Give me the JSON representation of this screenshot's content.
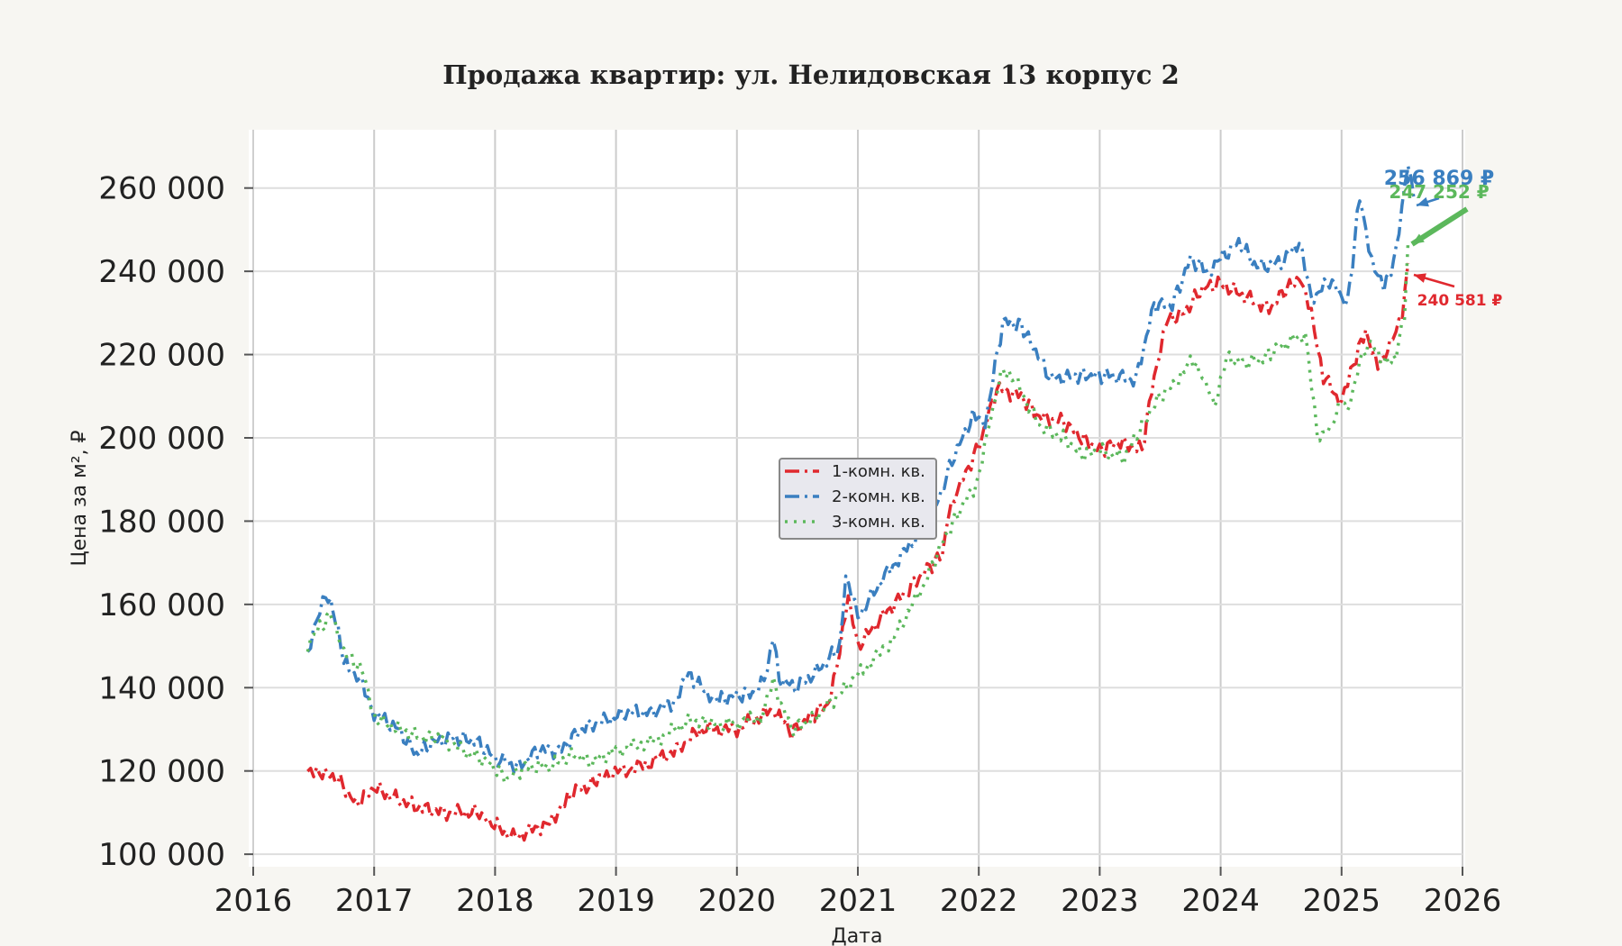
{
  "chart_data": {
    "type": "line",
    "title": "Продажа квартир: ул. Нелидовская 13 корпус 2",
    "xlabel": "Дата",
    "ylabel": "Цена за м², ₽",
    "x_ticks": [
      "2016",
      "2017",
      "2018",
      "2019",
      "2020",
      "2021",
      "2022",
      "2023",
      "2024",
      "2025",
      "2026"
    ],
    "y_ticks": [
      "100 000",
      "120 000",
      "140 000",
      "160 000",
      "180 000",
      "200 000",
      "220 000",
      "240 000",
      "260 000"
    ],
    "xlim": [
      2016.0,
      2026.0
    ],
    "ylim": [
      97000,
      274000
    ],
    "grid": true,
    "legend_position": "center",
    "series": [
      {
        "name": "1-комн. кв.",
        "color": "#e0282e",
        "dash": "dashdot",
        "points": [
          [
            2016.45,
            119000
          ],
          [
            2016.55,
            120000
          ],
          [
            2016.7,
            118000
          ],
          [
            2016.85,
            112000
          ],
          [
            2017.0,
            116000
          ],
          [
            2017.2,
            113000
          ],
          [
            2017.4,
            111000
          ],
          [
            2017.6,
            110000
          ],
          [
            2017.85,
            110000
          ],
          [
            2017.95,
            108000
          ],
          [
            2018.15,
            104000
          ],
          [
            2018.4,
            107000
          ],
          [
            2018.5,
            108000
          ],
          [
            2018.6,
            114000
          ],
          [
            2018.8,
            117000
          ],
          [
            2018.9,
            119000
          ],
          [
            2019.2,
            121000
          ],
          [
            2019.5,
            125000
          ],
          [
            2019.7,
            130000
          ],
          [
            2020.0,
            130000
          ],
          [
            2020.25,
            134000
          ],
          [
            2020.35,
            134000
          ],
          [
            2020.45,
            129000
          ],
          [
            2020.6,
            133000
          ],
          [
            2020.75,
            136000
          ],
          [
            2020.85,
            148000
          ],
          [
            2020.92,
            162000
          ],
          [
            2021.0,
            150000
          ],
          [
            2021.2,
            157000
          ],
          [
            2021.4,
            163000
          ],
          [
            2021.55,
            168000
          ],
          [
            2021.7,
            172000
          ],
          [
            2021.75,
            183000
          ],
          [
            2021.85,
            189000
          ],
          [
            2022.0,
            198000
          ],
          [
            2022.15,
            212000
          ],
          [
            2022.35,
            210000
          ],
          [
            2022.5,
            205000
          ],
          [
            2022.7,
            204000
          ],
          [
            2022.85,
            200000
          ],
          [
            2023.0,
            197000
          ],
          [
            2023.15,
            199000
          ],
          [
            2023.35,
            197000
          ],
          [
            2023.45,
            215000
          ],
          [
            2023.55,
            228000
          ],
          [
            2023.7,
            230000
          ],
          [
            2023.85,
            236000
          ],
          [
            2024.0,
            237000
          ],
          [
            2024.2,
            234000
          ],
          [
            2024.4,
            231000
          ],
          [
            2024.55,
            236000
          ],
          [
            2024.65,
            238000
          ],
          [
            2024.75,
            230000
          ],
          [
            2024.85,
            215000
          ],
          [
            2025.0,
            208000
          ],
          [
            2025.1,
            218000
          ],
          [
            2025.2,
            226000
          ],
          [
            2025.3,
            217000
          ],
          [
            2025.4,
            222000
          ],
          [
            2025.5,
            230000
          ],
          [
            2025.55,
            242000
          ]
        ]
      },
      {
        "name": "2-комн. кв.",
        "color": "#3a7fc0",
        "dash": "dashdot",
        "points": [
          [
            2016.45,
            147000
          ],
          [
            2016.5,
            153000
          ],
          [
            2016.6,
            163000
          ],
          [
            2016.7,
            155000
          ],
          [
            2016.75,
            146000
          ],
          [
            2016.9,
            141000
          ],
          [
            2017.0,
            134000
          ],
          [
            2017.2,
            130000
          ],
          [
            2017.35,
            124000
          ],
          [
            2017.5,
            127000
          ],
          [
            2017.7,
            128000
          ],
          [
            2017.85,
            127000
          ],
          [
            2018.0,
            123000
          ],
          [
            2018.2,
            121000
          ],
          [
            2018.35,
            125000
          ],
          [
            2018.55,
            125000
          ],
          [
            2018.7,
            130000
          ],
          [
            2018.9,
            132000
          ],
          [
            2019.1,
            134000
          ],
          [
            2019.3,
            134000
          ],
          [
            2019.5,
            137000
          ],
          [
            2019.6,
            143000
          ],
          [
            2019.75,
            139000
          ],
          [
            2019.85,
            137000
          ],
          [
            2020.0,
            138000
          ],
          [
            2020.15,
            139000
          ],
          [
            2020.25,
            143000
          ],
          [
            2020.3,
            152000
          ],
          [
            2020.35,
            142000
          ],
          [
            2020.5,
            140000
          ],
          [
            2020.7,
            145000
          ],
          [
            2020.85,
            150000
          ],
          [
            2020.9,
            166000
          ],
          [
            2021.0,
            157000
          ],
          [
            2021.2,
            166000
          ],
          [
            2021.45,
            175000
          ],
          [
            2021.65,
            184000
          ],
          [
            2021.8,
            196000
          ],
          [
            2021.95,
            205000
          ],
          [
            2022.05,
            203000
          ],
          [
            2022.2,
            228000
          ],
          [
            2022.35,
            227000
          ],
          [
            2022.45,
            222000
          ],
          [
            2022.6,
            214000
          ],
          [
            2022.8,
            215000
          ],
          [
            2022.95,
            215000
          ],
          [
            2023.1,
            215000
          ],
          [
            2023.3,
            214000
          ],
          [
            2023.45,
            232000
          ],
          [
            2023.6,
            232000
          ],
          [
            2023.75,
            243000
          ],
          [
            2023.9,
            240000
          ],
          [
            2024.0,
            243000
          ],
          [
            2024.15,
            247000
          ],
          [
            2024.3,
            241000
          ],
          [
            2024.5,
            242000
          ],
          [
            2024.65,
            247000
          ],
          [
            2024.75,
            233000
          ],
          [
            2024.9,
            238000
          ],
          [
            2025.05,
            232000
          ],
          [
            2025.15,
            258000
          ],
          [
            2025.25,
            243000
          ],
          [
            2025.35,
            236000
          ],
          [
            2025.45,
            244000
          ],
          [
            2025.55,
            267000
          ],
          [
            2025.6,
            257000
          ]
        ]
      },
      {
        "name": "3-комн. кв.",
        "color": "#5cb85c",
        "dash": "dot",
        "points": [
          [
            2016.45,
            150000
          ],
          [
            2016.55,
            154000
          ],
          [
            2016.65,
            158000
          ],
          [
            2016.75,
            149000
          ],
          [
            2016.9,
            144000
          ],
          [
            2017.0,
            133000
          ],
          [
            2017.2,
            130000
          ],
          [
            2017.4,
            128000
          ],
          [
            2017.55,
            128000
          ],
          [
            2017.8,
            124000
          ],
          [
            2017.95,
            122000
          ],
          [
            2018.1,
            118000
          ],
          [
            2018.25,
            121000
          ],
          [
            2018.45,
            121000
          ],
          [
            2018.65,
            124000
          ],
          [
            2018.8,
            122000
          ],
          [
            2019.0,
            125000
          ],
          [
            2019.3,
            127000
          ],
          [
            2019.6,
            132000
          ],
          [
            2019.9,
            131000
          ],
          [
            2020.2,
            133000
          ],
          [
            2020.3,
            141000
          ],
          [
            2020.45,
            130000
          ],
          [
            2020.6,
            132000
          ],
          [
            2020.8,
            137000
          ],
          [
            2021.0,
            143000
          ],
          [
            2021.3,
            152000
          ],
          [
            2021.55,
            165000
          ],
          [
            2021.7,
            175000
          ],
          [
            2021.85,
            183000
          ],
          [
            2022.0,
            190000
          ],
          [
            2022.1,
            205000
          ],
          [
            2022.2,
            217000
          ],
          [
            2022.3,
            214000
          ],
          [
            2022.5,
            203000
          ],
          [
            2022.7,
            200000
          ],
          [
            2022.85,
            196000
          ],
          [
            2023.0,
            197000
          ],
          [
            2023.2,
            195000
          ],
          [
            2023.35,
            203000
          ],
          [
            2023.5,
            210000
          ],
          [
            2023.65,
            214000
          ],
          [
            2023.75,
            218000
          ],
          [
            2023.85,
            215000
          ],
          [
            2023.95,
            208000
          ],
          [
            2024.05,
            219000
          ],
          [
            2024.2,
            218000
          ],
          [
            2024.35,
            219000
          ],
          [
            2024.5,
            222000
          ],
          [
            2024.7,
            225000
          ],
          [
            2024.8,
            200000
          ],
          [
            2024.9,
            202000
          ],
          [
            2025.0,
            210000
          ],
          [
            2025.05,
            206000
          ],
          [
            2025.15,
            218000
          ],
          [
            2025.25,
            224000
          ],
          [
            2025.35,
            218000
          ],
          [
            2025.45,
            219000
          ],
          [
            2025.52,
            230000
          ],
          [
            2025.55,
            247000
          ]
        ]
      }
    ],
    "annotations": [
      {
        "label": "256 869 ₽",
        "color": "#3a7fc0",
        "series": "2-комн. кв."
      },
      {
        "label": "247 252 ₽",
        "color": "#5cb85c",
        "series": "3-комн. кв."
      },
      {
        "label": "240 581 ₽",
        "color": "#e0282e",
        "series": "1-комн. кв."
      }
    ]
  }
}
